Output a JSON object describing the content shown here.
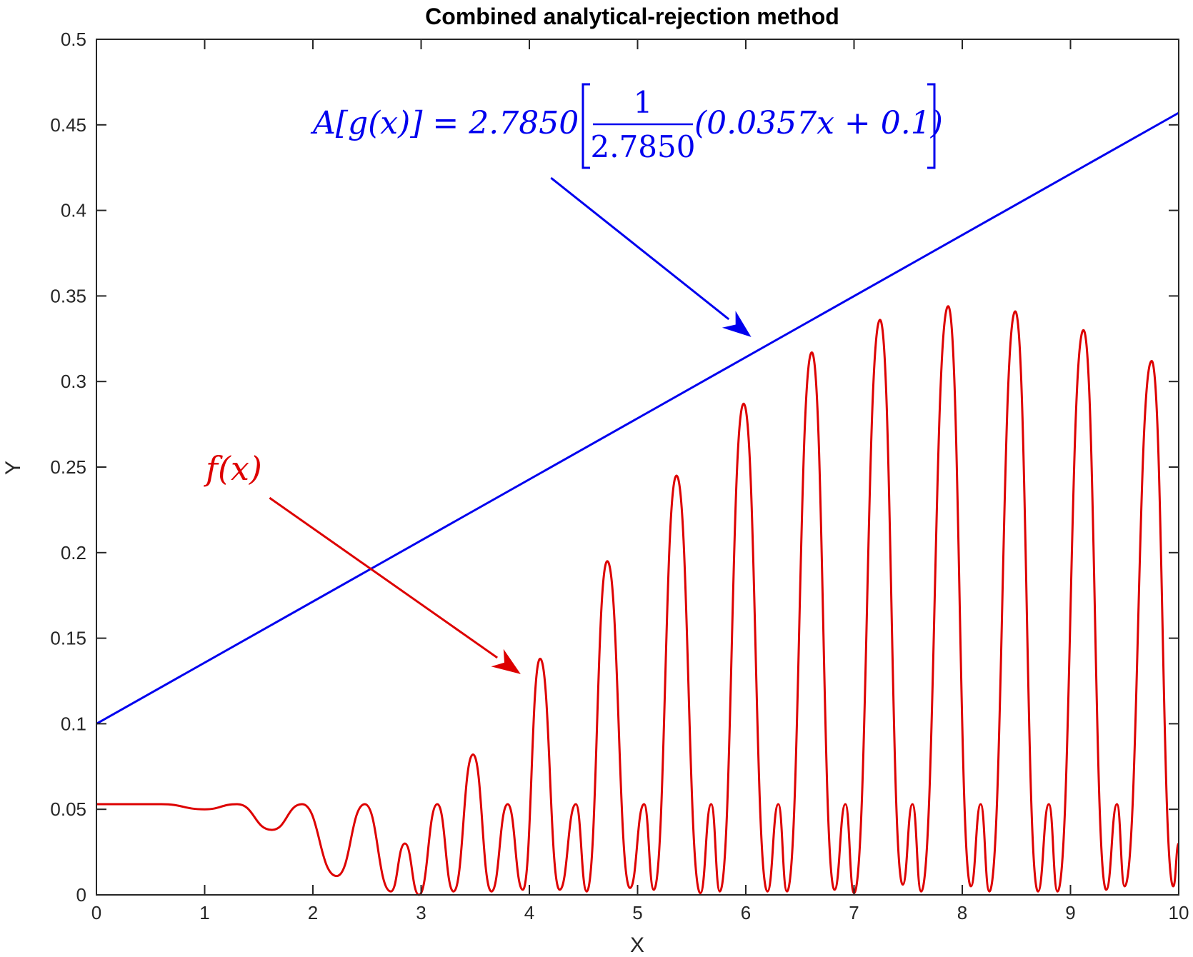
{
  "chart_data": {
    "type": "line",
    "title": "Combined analytical-rejection method",
    "xlabel": "X",
    "ylabel": "Y",
    "xlim": [
      0,
      10
    ],
    "ylim": [
      0,
      0.5
    ],
    "xticks": [
      "0",
      "1",
      "2",
      "3",
      "4",
      "5",
      "6",
      "7",
      "8",
      "9",
      "10"
    ],
    "yticks": [
      "0",
      "0.05",
      "0.1",
      "0.15",
      "0.2",
      "0.25",
      "0.3",
      "0.35",
      "0.4",
      "0.45",
      "0.5"
    ],
    "grid": false,
    "series": [
      {
        "key": "g",
        "color": "#0000ee",
        "x": [
          0,
          10
        ],
        "y": [
          0.1,
          0.457
        ]
      },
      {
        "key": "f",
        "color": "#dd0000",
        "x": [
          0,
          0.6,
          1.0,
          1.3,
          1.62,
          1.9,
          2.22,
          2.48,
          2.72,
          2.85,
          2.98,
          3.15,
          3.3,
          3.48,
          3.65,
          3.8,
          3.94,
          4.1,
          4.28,
          4.43,
          4.53,
          4.72,
          4.93,
          5.06,
          5.15,
          5.36,
          5.58,
          5.68,
          5.76,
          5.98,
          6.2,
          6.3,
          6.38,
          6.61,
          6.82,
          6.92,
          7.0,
          7.24,
          7.45,
          7.54,
          7.62,
          7.87,
          8.08,
          8.17,
          8.25,
          8.49,
          8.7,
          8.8,
          8.88,
          9.12,
          9.33,
          9.43,
          9.5,
          9.75,
          9.95,
          10.0
        ],
        "y": [
          0.053,
          0.053,
          0.05,
          0.053,
          0.038,
          0.053,
          0.011,
          0.053,
          0.002,
          0.03,
          0.0,
          0.053,
          0.002,
          0.082,
          0.002,
          0.053,
          0.003,
          0.138,
          0.003,
          0.053,
          0.002,
          0.195,
          0.004,
          0.053,
          0.003,
          0.245,
          0.001,
          0.053,
          0.002,
          0.287,
          0.002,
          0.053,
          0.002,
          0.317,
          0.003,
          0.053,
          0.001,
          0.336,
          0.006,
          0.053,
          0.002,
          0.344,
          0.005,
          0.053,
          0.002,
          0.341,
          0.002,
          0.053,
          0.002,
          0.33,
          0.003,
          0.053,
          0.005,
          0.312,
          0.005,
          0.03
        ]
      }
    ],
    "annotations": {
      "g_label": {
        "lhs": "A[g(x)] = 2.7850",
        "frac_num": "1",
        "frac_den": "2.7850",
        "rhs": "(0.0357x + 0.1)",
        "color": "#0000ee",
        "arrow_from": [
          4.2,
          0.419
        ],
        "arrow_to": [
          6.05,
          0.326
        ]
      },
      "f_label": {
        "text": "f(x)",
        "color": "#dd0000",
        "arrow_from": [
          1.6,
          0.232
        ],
        "arrow_to": [
          3.92,
          0.129
        ]
      }
    }
  }
}
